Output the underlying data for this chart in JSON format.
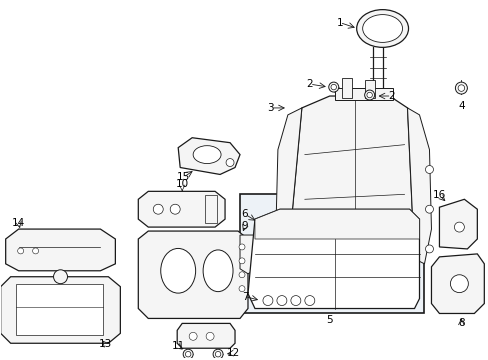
{
  "background_color": "#ffffff",
  "line_color": "#1a1a1a",
  "fill_light": "#f5f5f5",
  "fill_white": "#ffffff",
  "box_fill": "#edf2f7",
  "figsize": [
    4.89,
    3.6
  ],
  "dpi": 100
}
